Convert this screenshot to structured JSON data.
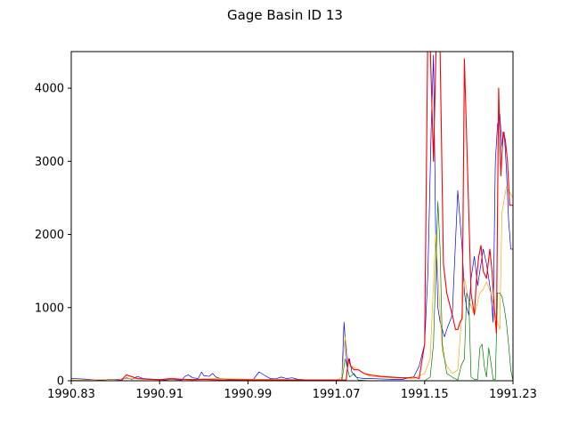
{
  "chart_data": {
    "type": "line",
    "title": "Gage Basin ID 13",
    "xlabel": "",
    "ylabel": "",
    "xlim": [
      1990.83,
      1991.23
    ],
    "ylim": [
      0,
      4500
    ],
    "xticks": [
      "1990.83",
      "1990.91",
      "1990.99",
      "1991.07",
      "1991.15",
      "1991.23"
    ],
    "yticks": [
      "0",
      "1000",
      "2000",
      "3000",
      "4000"
    ],
    "grid": false,
    "series": [
      {
        "color": "#0000ff",
        "x": [
          1990.83,
          1990.835,
          1990.84,
          1990.845,
          1990.85,
          1990.855,
          1990.86,
          1990.865,
          1990.87,
          1990.875,
          1990.88,
          1990.885,
          1990.89,
          1990.895,
          1990.9,
          1990.905,
          1990.91,
          1990.915,
          1990.92,
          1990.925,
          1990.93,
          1990.933,
          1990.936,
          1990.94,
          1990.945,
          1990.948,
          1990.95,
          1990.955,
          1990.958,
          1990.961,
          1990.965,
          1990.97,
          1990.975,
          1990.98,
          1990.985,
          1990.99,
          1990.995,
          1991.0,
          1991.01,
          1991.015,
          1991.02,
          1991.025,
          1991.03,
          1991.035,
          1991.04,
          1991.045,
          1991.05,
          1991.06,
          1991.065,
          1991.07,
          1991.075,
          1991.077,
          1991.079,
          1991.08,
          1991.082,
          1991.084,
          1991.086,
          1991.088,
          1991.09,
          1991.095,
          1991.1,
          1991.11,
          1991.12,
          1991.13,
          1991.14,
          1991.145,
          1991.15,
          1991.153,
          1991.156,
          1991.158,
          1991.16,
          1991.162,
          1991.164,
          1991.166,
          1991.168,
          1991.17,
          1991.175,
          1991.18,
          1991.184,
          1991.186,
          1991.188,
          1991.19,
          1991.192,
          1991.195,
          1991.198,
          1991.2,
          1991.203,
          1991.206,
          1991.208,
          1991.21,
          1991.212,
          1991.214,
          1991.216,
          1991.218,
          1991.22,
          1991.222,
          1991.224,
          1991.226,
          1991.228,
          1991.23
        ],
        "y": [
          30,
          28,
          25,
          20,
          15,
          10,
          12,
          20,
          15,
          10,
          40,
          20,
          60,
          30,
          25,
          20,
          15,
          10,
          20,
          15,
          10,
          60,
          80,
          40,
          30,
          120,
          70,
          60,
          100,
          50,
          30,
          25,
          20,
          20,
          15,
          15,
          20,
          120,
          30,
          25,
          50,
          30,
          40,
          20,
          15,
          10,
          10,
          10,
          10,
          10,
          10,
          800,
          350,
          200,
          300,
          120,
          80,
          50,
          40,
          30,
          30,
          25,
          20,
          20,
          50,
          200,
          500,
          1500,
          3500,
          4450,
          2000,
          1000,
          800,
          700,
          600,
          700,
          900,
          2600,
          1800,
          1200,
          1000,
          900,
          1400,
          1700,
          1300,
          1500,
          1800,
          1600,
          1400,
          1200,
          800,
          3000,
          3500,
          3650,
          3200,
          3400,
          2900,
          2200,
          1800,
          1800
        ]
      },
      {
        "color": "#ffa500",
        "x": [
          1990.83,
          1990.86,
          1990.87,
          1990.88,
          1990.9,
          1990.94,
          1990.96,
          1991.0,
          1991.02,
          1991.05,
          1991.07,
          1991.075,
          1991.078,
          1991.081,
          1991.084,
          1991.09,
          1991.1,
          1991.12,
          1991.14,
          1991.15,
          1991.155,
          1991.16,
          1991.163,
          1991.166,
          1991.17,
          1991.175,
          1991.18,
          1991.186,
          1991.19,
          1991.195,
          1991.2,
          1991.203,
          1991.206,
          1991.21,
          1991.214,
          1991.218,
          1991.22,
          1991.224,
          1991.228,
          1991.23
        ],
        "y": [
          10,
          15,
          20,
          30,
          20,
          20,
          30,
          20,
          20,
          10,
          10,
          50,
          600,
          250,
          200,
          150,
          60,
          40,
          30,
          100,
          300,
          2000,
          1200,
          400,
          200,
          100,
          150,
          1400,
          1100,
          900,
          1200,
          1250,
          1350,
          1200,
          900,
          700,
          2300,
          2650,
          2550,
          2500
        ]
      },
      {
        "color": "#008000",
        "x": [
          1990.83,
          1990.87,
          1990.9,
          1990.95,
          1991.0,
          1991.05,
          1991.07,
          1991.075,
          1991.078,
          1991.082,
          1991.086,
          1991.09,
          1991.1,
          1991.12,
          1991.14,
          1991.15,
          1991.155,
          1991.158,
          1991.16,
          1991.162,
          1991.164,
          1991.166,
          1991.17,
          1991.175,
          1991.18,
          1991.183,
          1991.186,
          1991.188,
          1991.19,
          1991.192,
          1991.195,
          1991.198,
          1991.2,
          1991.202,
          1991.204,
          1991.206,
          1991.208,
          1991.21,
          1991.212,
          1991.214,
          1991.216,
          1991.218,
          1991.22,
          1991.222,
          1991.224,
          1991.226,
          1991.228,
          1991.23
        ],
        "y": [
          0,
          0,
          0,
          0,
          0,
          0,
          0,
          0,
          300,
          50,
          100,
          10,
          0,
          0,
          0,
          0,
          50,
          500,
          1500,
          2450,
          1800,
          500,
          100,
          50,
          10,
          200,
          300,
          1200,
          1100,
          50,
          20,
          20,
          450,
          500,
          200,
          50,
          450,
          250,
          20,
          20,
          1200,
          1200,
          1150,
          1000,
          800,
          500,
          150,
          0
        ]
      },
      {
        "color": "#ff0000",
        "x": [
          1990.83,
          1990.85,
          1990.86,
          1990.865,
          1990.87,
          1990.875,
          1990.88,
          1990.89,
          1990.9,
          1990.91,
          1990.92,
          1990.93,
          1990.94,
          1990.95,
          1990.96,
          1990.97,
          1990.98,
          1990.99,
          1991.0,
          1991.01,
          1991.02,
          1991.03,
          1991.04,
          1991.05,
          1991.06,
          1991.07,
          1991.075,
          1991.079,
          1991.081,
          1991.083,
          1991.086,
          1991.09,
          1991.095,
          1991.1,
          1991.11,
          1991.12,
          1991.13,
          1991.135,
          1991.14,
          1991.145,
          1991.15,
          1991.153,
          1991.155,
          1991.158,
          1991.161,
          1991.164,
          1991.167,
          1991.17,
          1991.175,
          1991.178,
          1991.18,
          1991.182,
          1991.184,
          1991.186,
          1991.189,
          1991.192,
          1991.195,
          1991.197,
          1991.199,
          1991.201,
          1991.203,
          1991.206,
          1991.209,
          1991.211,
          1991.213,
          1991.215,
          1991.217,
          1991.219,
          1991.221,
          1991.223,
          1991.225,
          1991.227,
          1991.23
        ],
        "y": [
          0,
          0,
          0,
          0,
          0,
          0,
          80,
          30,
          20,
          15,
          30,
          20,
          15,
          20,
          15,
          10,
          10,
          10,
          10,
          10,
          10,
          10,
          10,
          10,
          10,
          10,
          10,
          10,
          300,
          200,
          150,
          150,
          100,
          80,
          60,
          50,
          40,
          40,
          50,
          30,
          500,
          5000,
          4600,
          3000,
          5000,
          4500,
          1600,
          1200,
          900,
          700,
          700,
          800,
          850,
          4400,
          2800,
          1200,
          900,
          1400,
          1700,
          1850,
          1500,
          1400,
          1800,
          1500,
          1000,
          650,
          4000,
          2800,
          3400,
          3300,
          3000,
          2400,
          2400
        ]
      }
    ]
  }
}
